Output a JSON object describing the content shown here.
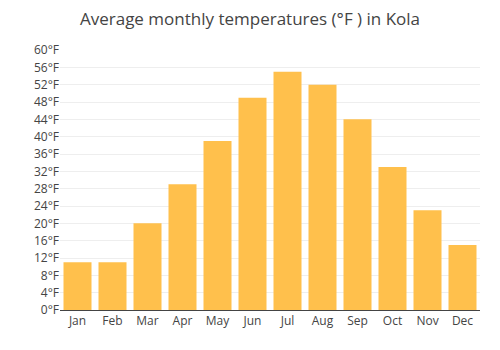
{
  "chart_data": {
    "type": "bar",
    "title": "Average monthly temperatures (°F ) in Kola",
    "categories": [
      "Jan",
      "Feb",
      "Mar",
      "Apr",
      "May",
      "Jun",
      "Jul",
      "Aug",
      "Sep",
      "Oct",
      "Nov",
      "Dec"
    ],
    "values": [
      11,
      11,
      20,
      29,
      39,
      49,
      55,
      52,
      44,
      33,
      23,
      15
    ],
    "color": "#FFC04C",
    "ylim": [
      0,
      60
    ],
    "yticks": [
      {
        "value": 0,
        "label": "0°F"
      },
      {
        "value": 4,
        "label": "4°F"
      },
      {
        "value": 8,
        "label": "8°F"
      },
      {
        "value": 12,
        "label": "12°F"
      },
      {
        "value": 16,
        "label": "16°F"
      },
      {
        "value": 20,
        "label": "20°F"
      },
      {
        "value": 24,
        "label": "24°F"
      },
      {
        "value": 28,
        "label": "28°F"
      },
      {
        "value": 32,
        "label": "32°F"
      },
      {
        "value": 36,
        "label": "36°F"
      },
      {
        "value": 40,
        "label": "40°F"
      },
      {
        "value": 44,
        "label": "44°F"
      },
      {
        "value": 48,
        "label": "48°F"
      },
      {
        "value": 52,
        "label": "52°F"
      },
      {
        "value": 56,
        "label": "56°F"
      },
      {
        "value": 60,
        "label": "60°F"
      }
    ],
    "grid": true
  }
}
